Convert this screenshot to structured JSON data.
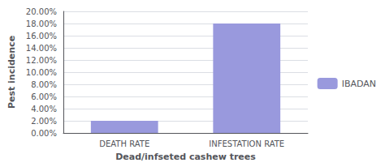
{
  "chart_data": {
    "type": "bar",
    "categories": [
      "DEATH RATE",
      "INFESTATION RATE"
    ],
    "series": [
      {
        "name": "IBADAN",
        "color": "#9999dd",
        "values": [
          0.02,
          0.18
        ]
      }
    ],
    "xlabel": "Dead/infseted cashew trees",
    "ylabel": "Pest incidence",
    "ylim": [
      0.0,
      0.2
    ],
    "yticks": [
      {
        "value": 0.0,
        "label": "0.00%"
      },
      {
        "value": 0.02,
        "label": "2.00%"
      },
      {
        "value": 0.04,
        "label": "4.00%"
      },
      {
        "value": 0.06,
        "label": "6.00%"
      },
      {
        "value": 0.08,
        "label": "8.00%"
      },
      {
        "value": 0.1,
        "label": "10.00%"
      },
      {
        "value": 0.12,
        "label": "12.00%"
      },
      {
        "value": 0.14,
        "label": "14.00%"
      },
      {
        "value": 0.16,
        "label": "16.00%"
      },
      {
        "value": 0.18,
        "label": "18.00%"
      },
      {
        "value": 0.2,
        "label": "20.00%"
      }
    ],
    "grid": true,
    "legend": "right"
  }
}
